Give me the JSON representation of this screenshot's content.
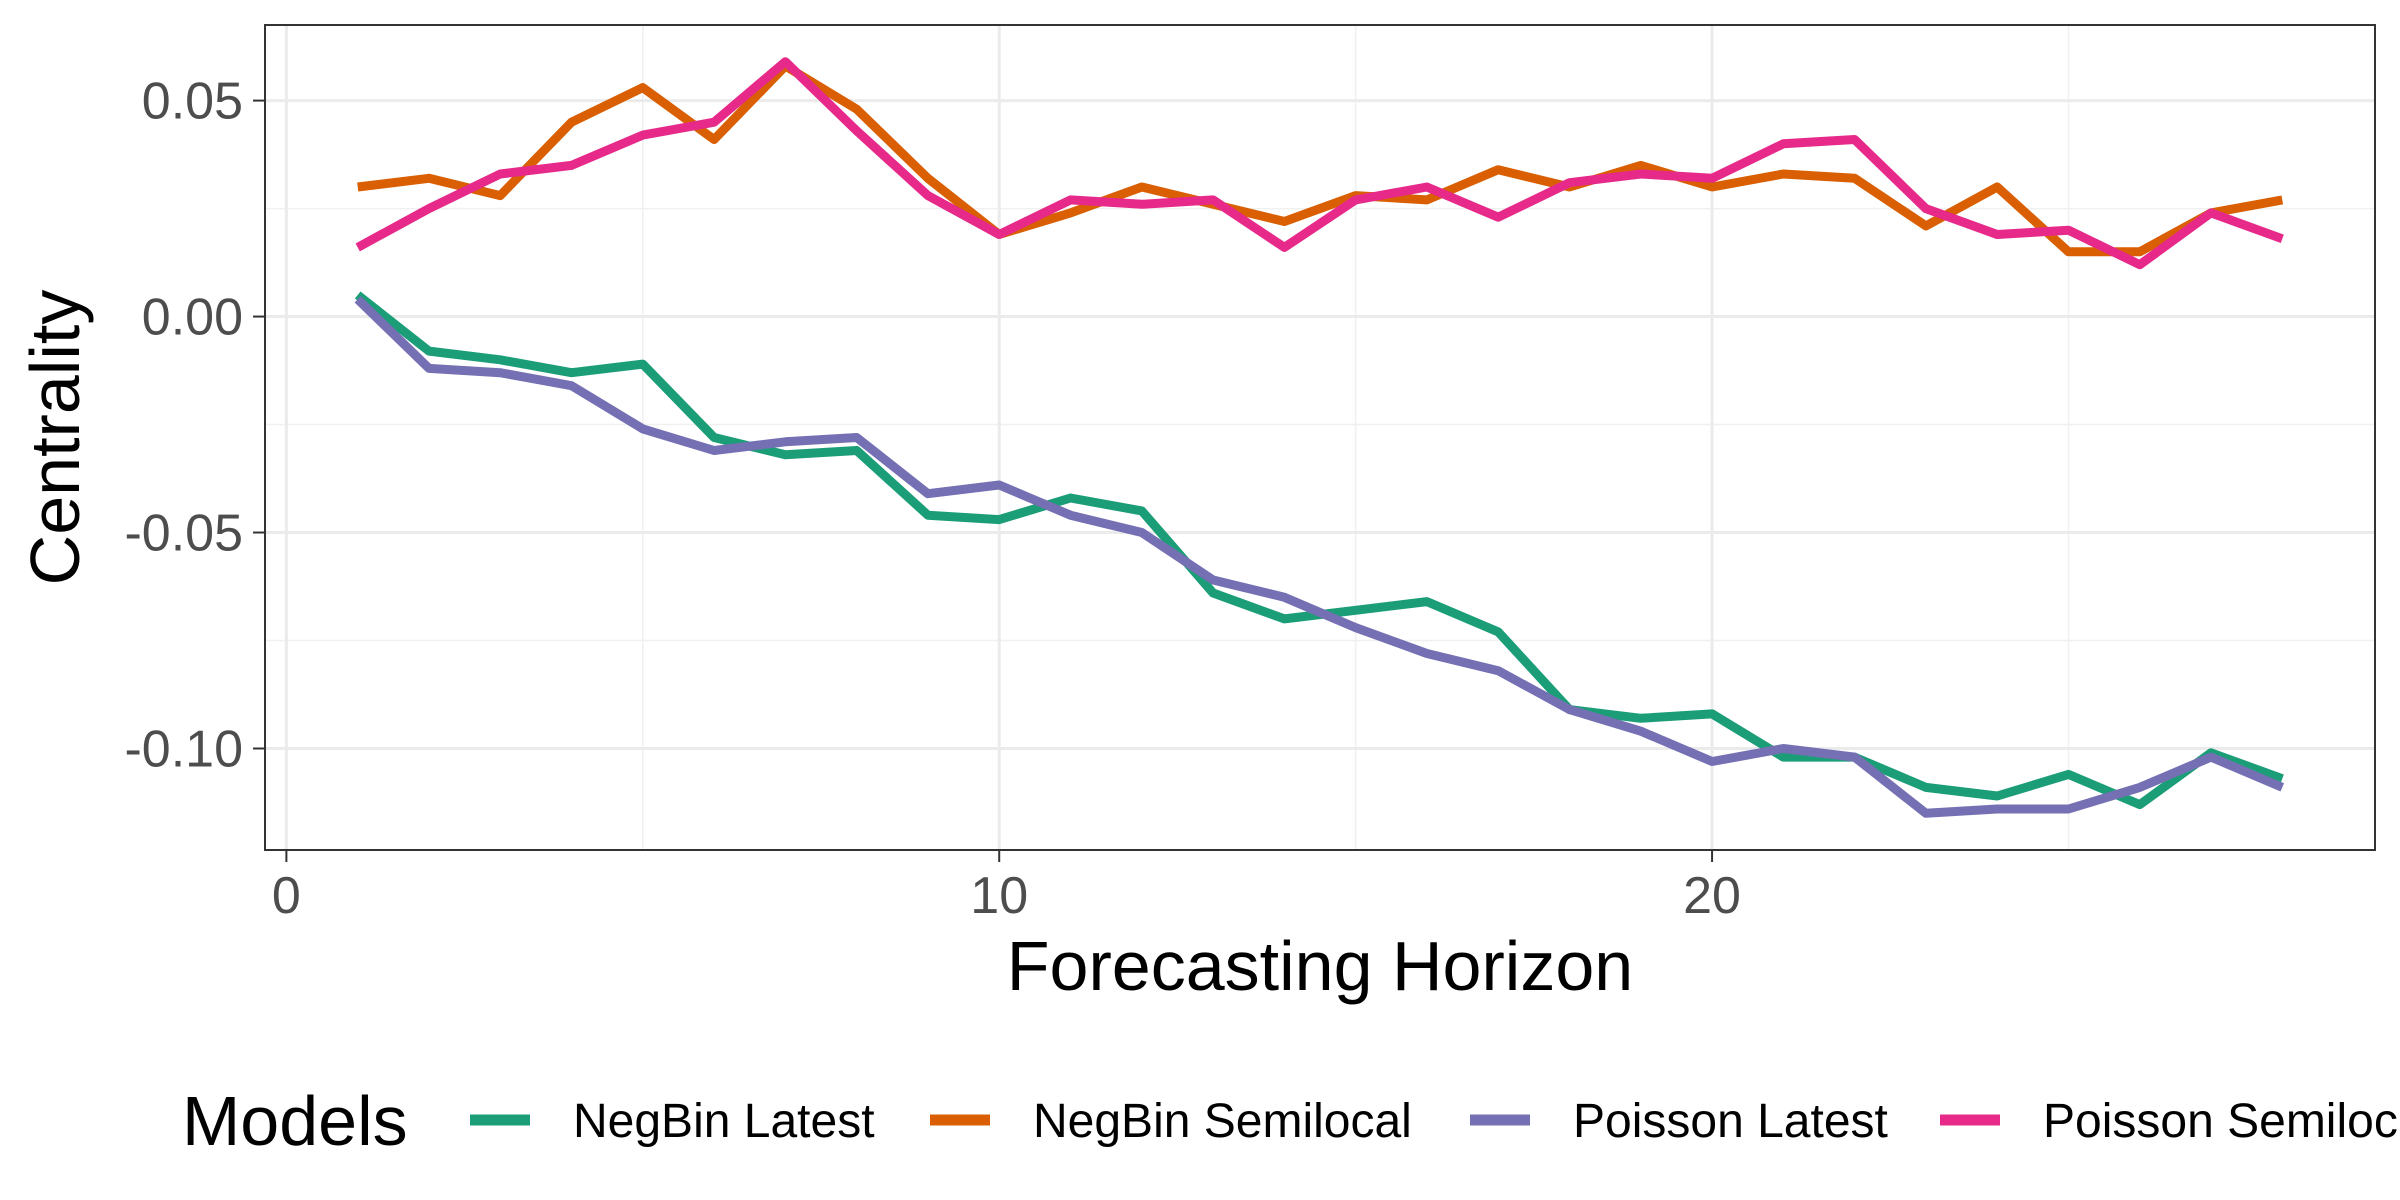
{
  "chart_data": {
    "type": "line",
    "xlabel": "Forecasting Horizon",
    "ylabel": "Centrality",
    "xlim": [
      -0.3,
      29.3
    ],
    "ylim": [
      -0.1235,
      0.0675
    ],
    "x_ticks": [
      0,
      10,
      20
    ],
    "x_tick_labels": [
      "0",
      "10",
      "20"
    ],
    "x_minor_ticks": [
      5,
      15,
      25
    ],
    "y_ticks": [
      0.05,
      0.0,
      -0.05,
      -0.1
    ],
    "y_tick_labels": [
      "0.05",
      "0.00",
      "-0.05",
      "-0.10"
    ],
    "y_minor_ticks": [
      0.025,
      -0.025,
      -0.075
    ],
    "grid": true,
    "legend": {
      "title": "Models",
      "position": "bottom"
    },
    "x": [
      1,
      2,
      3,
      4,
      5,
      6,
      7,
      8,
      9,
      10,
      11,
      12,
      13,
      14,
      15,
      16,
      17,
      18,
      19,
      20,
      21,
      22,
      23,
      24,
      25,
      26,
      27,
      28
    ],
    "series": [
      {
        "name": "NegBin Latest",
        "color": "#1b9e77",
        "values": [
          0.005,
          -0.008,
          -0.01,
          -0.013,
          -0.011,
          -0.028,
          -0.032,
          -0.031,
          -0.046,
          -0.047,
          -0.042,
          -0.045,
          -0.064,
          -0.07,
          -0.068,
          -0.066,
          -0.073,
          -0.091,
          -0.093,
          -0.092,
          -0.102,
          -0.102,
          -0.109,
          -0.111,
          -0.106,
          -0.113,
          -0.101,
          -0.107
        ]
      },
      {
        "name": "NegBin Semilocal",
        "color": "#d95f02",
        "values": [
          0.03,
          0.032,
          0.028,
          0.045,
          0.053,
          0.041,
          0.058,
          0.048,
          0.032,
          0.019,
          0.024,
          0.03,
          0.026,
          0.022,
          0.028,
          0.027,
          0.034,
          0.03,
          0.035,
          0.03,
          0.033,
          0.032,
          0.021,
          0.03,
          0.015,
          0.015,
          0.024,
          0.027
        ]
      },
      {
        "name": "Poisson Latest",
        "color": "#7570b3",
        "values": [
          0.004,
          -0.012,
          -0.013,
          -0.016,
          -0.026,
          -0.031,
          -0.029,
          -0.028,
          -0.041,
          -0.039,
          -0.046,
          -0.05,
          -0.061,
          -0.065,
          -0.072,
          -0.078,
          -0.082,
          -0.091,
          -0.096,
          -0.103,
          -0.1,
          -0.102,
          -0.115,
          -0.114,
          -0.114,
          -0.109,
          -0.102,
          -0.109
        ]
      },
      {
        "name": "Poisson Semilocal",
        "color": "#e7298a",
        "values": [
          0.016,
          0.025,
          0.033,
          0.035,
          0.042,
          0.045,
          0.059,
          0.043,
          0.028,
          0.019,
          0.027,
          0.026,
          0.027,
          0.016,
          0.027,
          0.03,
          0.023,
          0.031,
          0.033,
          0.032,
          0.04,
          0.041,
          0.025,
          0.019,
          0.02,
          0.012,
          0.024,
          0.018
        ]
      }
    ]
  }
}
